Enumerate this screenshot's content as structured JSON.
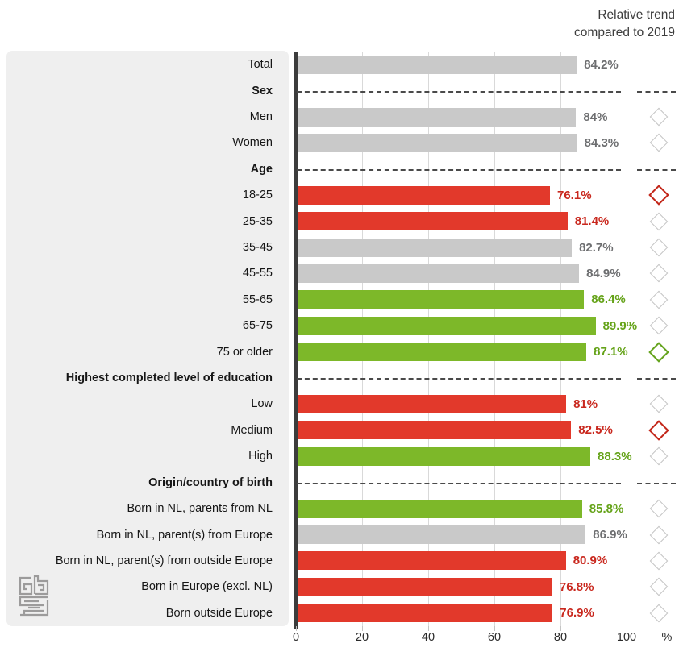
{
  "title": {
    "line1": "Relative trend",
    "line2": "compared to 2019"
  },
  "axis": {
    "ticks": [
      "0",
      "20",
      "40",
      "60",
      "80",
      "100"
    ],
    "unit": "%",
    "min": 0,
    "max": 100
  },
  "colors": {
    "bar_gray": "#c9c9c9",
    "bar_red": "#e2392b",
    "bar_green": "#7db829",
    "text_gray": "#6d6e70",
    "text_red": "#c9281e",
    "text_green": "#65a319",
    "diamond_gray": "#c5c5c5",
    "diamond_red": "#c3271a",
    "diamond_green": "#64a31c",
    "panel_bg": "#efefef",
    "axis_line": "#3c3c3c"
  },
  "logo": {
    "name": "cbs-logo"
  },
  "chart_data": {
    "type": "bar",
    "orientation": "horizontal",
    "title": "Relative trend compared to 2019",
    "xlabel": "%",
    "xlim": [
      0,
      100
    ],
    "x_ticks": [
      0,
      20,
      40,
      60,
      80,
      100
    ],
    "legend": "none",
    "grid": "vertical-light",
    "rows": [
      {
        "kind": "bar",
        "label": "Total",
        "value": 84.2,
        "display": "84.2%",
        "color": "gray",
        "trend_marker": "none"
      },
      {
        "kind": "header",
        "label": "Sex"
      },
      {
        "kind": "bar",
        "label": "Men",
        "value": 84,
        "display": "84%",
        "color": "gray",
        "trend_marker": "gray"
      },
      {
        "kind": "bar",
        "label": "Women",
        "value": 84.3,
        "display": "84.3%",
        "color": "gray",
        "trend_marker": "gray"
      },
      {
        "kind": "header",
        "label": "Age"
      },
      {
        "kind": "bar",
        "label": "18-25",
        "value": 76.1,
        "display": "76.1%",
        "color": "red",
        "trend_marker": "red"
      },
      {
        "kind": "bar",
        "label": "25-35",
        "value": 81.4,
        "display": "81.4%",
        "color": "red",
        "trend_marker": "gray"
      },
      {
        "kind": "bar",
        "label": "35-45",
        "value": 82.7,
        "display": "82.7%",
        "color": "gray",
        "trend_marker": "gray"
      },
      {
        "kind": "bar",
        "label": "45-55",
        "value": 84.9,
        "display": "84.9%",
        "color": "gray",
        "trend_marker": "gray"
      },
      {
        "kind": "bar",
        "label": "55-65",
        "value": 86.4,
        "display": "86.4%",
        "color": "green",
        "trend_marker": "gray"
      },
      {
        "kind": "bar",
        "label": "65-75",
        "value": 89.9,
        "display": "89.9%",
        "color": "green",
        "trend_marker": "gray"
      },
      {
        "kind": "bar",
        "label": "75 or older",
        "value": 87.1,
        "display": "87.1%",
        "color": "green",
        "trend_marker": "green"
      },
      {
        "kind": "header",
        "label": "Highest completed level of education"
      },
      {
        "kind": "bar",
        "label": "Low",
        "value": 81,
        "display": "81%",
        "color": "red",
        "trend_marker": "gray"
      },
      {
        "kind": "bar",
        "label": "Medium",
        "value": 82.5,
        "display": "82.5%",
        "color": "red",
        "trend_marker": "red"
      },
      {
        "kind": "bar",
        "label": "High",
        "value": 88.3,
        "display": "88.3%",
        "color": "green",
        "trend_marker": "gray"
      },
      {
        "kind": "header",
        "label": "Origin/country of birth"
      },
      {
        "kind": "bar",
        "label": "Born in NL, parents from NL",
        "value": 85.8,
        "display": "85.8%",
        "color": "green",
        "trend_marker": "gray"
      },
      {
        "kind": "bar",
        "label": "Born in NL, parent(s) from Europe",
        "value": 86.9,
        "display": "86.9%",
        "color": "gray",
        "trend_marker": "gray"
      },
      {
        "kind": "bar",
        "label": "Born in NL, parent(s) from outside Europe",
        "value": 80.9,
        "display": "80.9%",
        "color": "red",
        "trend_marker": "gray"
      },
      {
        "kind": "bar",
        "label": "Born in Europe (excl. NL)",
        "value": 76.8,
        "display": "76.8%",
        "color": "red",
        "trend_marker": "gray"
      },
      {
        "kind": "bar",
        "label": "Born outside Europe",
        "value": 76.9,
        "display": "76.9%",
        "color": "red",
        "trend_marker": "gray"
      }
    ]
  }
}
